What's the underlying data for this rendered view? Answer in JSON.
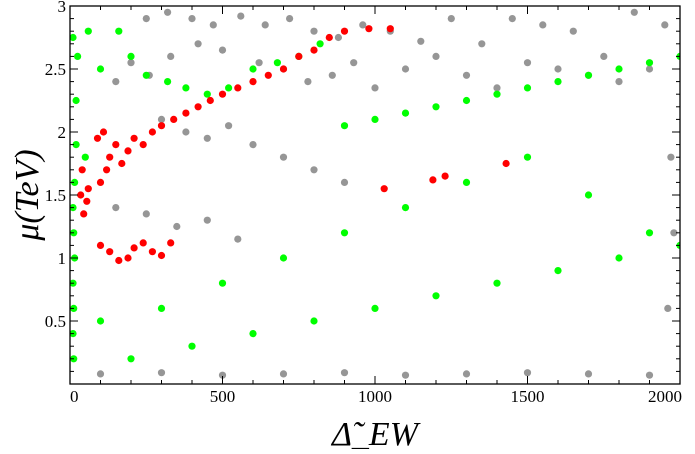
{
  "chart_data": {
    "type": "scatter",
    "title": "",
    "xlabel": "Δ̃_EW",
    "ylabel": "μ(TeV)",
    "xlim": [
      0,
      2000
    ],
    "ylim": [
      0,
      3
    ],
    "xticks": [
      "0",
      "500",
      "1000",
      "1500",
      "2000"
    ],
    "yticks": [
      "0.5",
      "1",
      "1.5",
      "2",
      "2.5",
      "3"
    ],
    "grid": false,
    "legend": "none",
    "series": [
      {
        "color": "#969696",
        "values": [
          [
            250,
            2.9
          ],
          [
            320,
            2.95
          ],
          [
            400,
            2.9
          ],
          [
            470,
            2.85
          ],
          [
            560,
            2.92
          ],
          [
            640,
            2.85
          ],
          [
            720,
            2.9
          ],
          [
            800,
            2.8
          ],
          [
            880,
            2.75
          ],
          [
            960,
            2.85
          ],
          [
            1050,
            2.8
          ],
          [
            1150,
            2.72
          ],
          [
            1250,
            2.9
          ],
          [
            1350,
            2.7
          ],
          [
            1450,
            2.9
          ],
          [
            1550,
            2.85
          ],
          [
            1650,
            2.8
          ],
          [
            1750,
            2.6
          ],
          [
            1850,
            2.95
          ],
          [
            1950,
            2.85
          ],
          [
            150,
            2.4
          ],
          [
            200,
            2.55
          ],
          [
            260,
            2.45
          ],
          [
            330,
            2.6
          ],
          [
            420,
            2.7
          ],
          [
            500,
            2.65
          ],
          [
            620,
            2.55
          ],
          [
            700,
            2.5
          ],
          [
            780,
            2.4
          ],
          [
            860,
            2.45
          ],
          [
            930,
            2.55
          ],
          [
            1000,
            2.35
          ],
          [
            1100,
            2.5
          ],
          [
            1200,
            2.6
          ],
          [
            1300,
            2.45
          ],
          [
            1400,
            2.35
          ],
          [
            1500,
            2.55
          ],
          [
            1600,
            2.5
          ],
          [
            1700,
            2.45
          ],
          [
            1800,
            2.4
          ],
          [
            1900,
            2.5
          ],
          [
            300,
            2.1
          ],
          [
            380,
            2.0
          ],
          [
            450,
            1.95
          ],
          [
            520,
            2.05
          ],
          [
            600,
            1.9
          ],
          [
            700,
            1.8
          ],
          [
            800,
            1.7
          ],
          [
            900,
            1.6
          ],
          [
            150,
            1.4
          ],
          [
            250,
            1.35
          ],
          [
            350,
            1.25
          ],
          [
            450,
            1.3
          ],
          [
            550,
            1.15
          ],
          [
            100,
            0.08
          ],
          [
            300,
            0.09
          ],
          [
            500,
            0.07
          ],
          [
            700,
            0.08
          ],
          [
            900,
            0.09
          ],
          [
            1100,
            0.07
          ],
          [
            1300,
            0.08
          ],
          [
            1500,
            0.09
          ],
          [
            1700,
            0.08
          ],
          [
            1900,
            0.07
          ],
          [
            1960,
            0.6
          ],
          [
            1980,
            1.2
          ],
          [
            1970,
            1.8
          ]
        ]
      },
      {
        "color": "#00ff00",
        "values": [
          [
            10,
            2.75
          ],
          [
            25,
            2.6
          ],
          [
            60,
            2.8
          ],
          [
            100,
            2.5
          ],
          [
            160,
            2.8
          ],
          [
            200,
            2.6
          ],
          [
            250,
            2.45
          ],
          [
            320,
            2.4
          ],
          [
            380,
            2.35
          ],
          [
            450,
            2.3
          ],
          [
            520,
            2.35
          ],
          [
            600,
            2.5
          ],
          [
            680,
            2.55
          ],
          [
            750,
            2.6
          ],
          [
            820,
            2.7
          ],
          [
            20,
            2.25
          ],
          [
            20,
            1.9
          ],
          [
            50,
            1.8
          ],
          [
            15,
            1.6
          ],
          [
            10,
            1.4
          ],
          [
            12,
            1.2
          ],
          [
            15,
            1.0
          ],
          [
            10,
            0.8
          ],
          [
            12,
            0.6
          ],
          [
            10,
            0.4
          ],
          [
            12,
            0.2
          ],
          [
            900,
            2.05
          ],
          [
            1000,
            2.1
          ],
          [
            1100,
            2.15
          ],
          [
            1200,
            2.2
          ],
          [
            1300,
            2.25
          ],
          [
            1400,
            2.3
          ],
          [
            1500,
            2.35
          ],
          [
            1600,
            2.4
          ],
          [
            1700,
            2.45
          ],
          [
            1800,
            2.5
          ],
          [
            1900,
            2.55
          ],
          [
            2000,
            2.6
          ],
          [
            100,
            0.5
          ],
          [
            300,
            0.6
          ],
          [
            500,
            0.8
          ],
          [
            700,
            1.0
          ],
          [
            900,
            1.2
          ],
          [
            1100,
            1.4
          ],
          [
            1300,
            1.6
          ],
          [
            1500,
            1.8
          ],
          [
            1700,
            1.5
          ],
          [
            1900,
            1.2
          ],
          [
            200,
            0.2
          ],
          [
            400,
            0.3
          ],
          [
            600,
            0.4
          ],
          [
            800,
            0.5
          ],
          [
            1000,
            0.6
          ],
          [
            1200,
            0.7
          ],
          [
            1400,
            0.8
          ],
          [
            1600,
            0.9
          ],
          [
            1800,
            1.0
          ],
          [
            2000,
            1.1
          ]
        ]
      },
      {
        "color": "#ff0000",
        "values": [
          [
            90,
            1.95
          ],
          [
            100,
            1.6
          ],
          [
            110,
            2.0
          ],
          [
            120,
            1.7
          ],
          [
            130,
            1.8
          ],
          [
            150,
            1.9
          ],
          [
            170,
            1.75
          ],
          [
            190,
            1.85
          ],
          [
            210,
            1.95
          ],
          [
            240,
            1.9
          ],
          [
            270,
            2.0
          ],
          [
            300,
            2.05
          ],
          [
            340,
            2.1
          ],
          [
            380,
            2.15
          ],
          [
            420,
            2.2
          ],
          [
            460,
            2.25
          ],
          [
            500,
            2.3
          ],
          [
            550,
            2.35
          ],
          [
            600,
            2.4
          ],
          [
            650,
            2.45
          ],
          [
            700,
            2.5
          ],
          [
            750,
            2.6
          ],
          [
            800,
            2.65
          ],
          [
            850,
            2.75
          ],
          [
            900,
            2.8
          ],
          [
            980,
            2.82
          ],
          [
            1050,
            2.82
          ],
          [
            60,
            1.55
          ],
          [
            55,
            1.45
          ],
          [
            45,
            1.35
          ],
          [
            35,
            1.5
          ],
          [
            40,
            1.7
          ],
          [
            100,
            1.1
          ],
          [
            130,
            1.05
          ],
          [
            160,
            0.98
          ],
          [
            190,
            1.0
          ],
          [
            210,
            1.08
          ],
          [
            240,
            1.12
          ],
          [
            270,
            1.05
          ],
          [
            300,
            1.02
          ],
          [
            330,
            1.12
          ],
          [
            1030,
            1.55
          ],
          [
            1190,
            1.62
          ],
          [
            1230,
            1.65
          ],
          [
            1430,
            1.75
          ]
        ]
      }
    ]
  }
}
